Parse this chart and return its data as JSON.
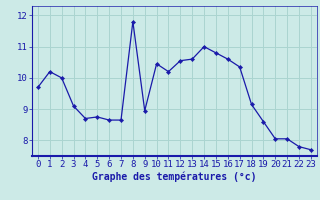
{
  "x": [
    0,
    1,
    2,
    3,
    4,
    5,
    6,
    7,
    8,
    9,
    10,
    11,
    12,
    13,
    14,
    15,
    16,
    17,
    18,
    19,
    20,
    21,
    22,
    23
  ],
  "y": [
    9.7,
    10.2,
    10.0,
    9.1,
    8.7,
    8.75,
    8.65,
    8.65,
    11.8,
    8.95,
    10.45,
    10.2,
    10.55,
    10.6,
    11.0,
    10.8,
    10.6,
    10.35,
    9.15,
    8.6,
    8.05,
    8.05,
    7.8,
    7.7
  ],
  "line_color": "#1a1aaa",
  "marker": "D",
  "marker_size": 2.2,
  "bg_color": "#cceae7",
  "grid_color": "#aad4d0",
  "axis_color": "#1a1aaa",
  "xlabel": "Graphe des températures (°c)",
  "xlabel_fontsize": 7,
  "tick_fontsize": 6.5,
  "ylim": [
    7.5,
    12.3
  ],
  "xlim": [
    -0.5,
    23.5
  ],
  "yticks": [
    8,
    9,
    10,
    11,
    12
  ],
  "xticks": [
    0,
    1,
    2,
    3,
    4,
    5,
    6,
    7,
    8,
    9,
    10,
    11,
    12,
    13,
    14,
    15,
    16,
    17,
    18,
    19,
    20,
    21,
    22,
    23
  ]
}
